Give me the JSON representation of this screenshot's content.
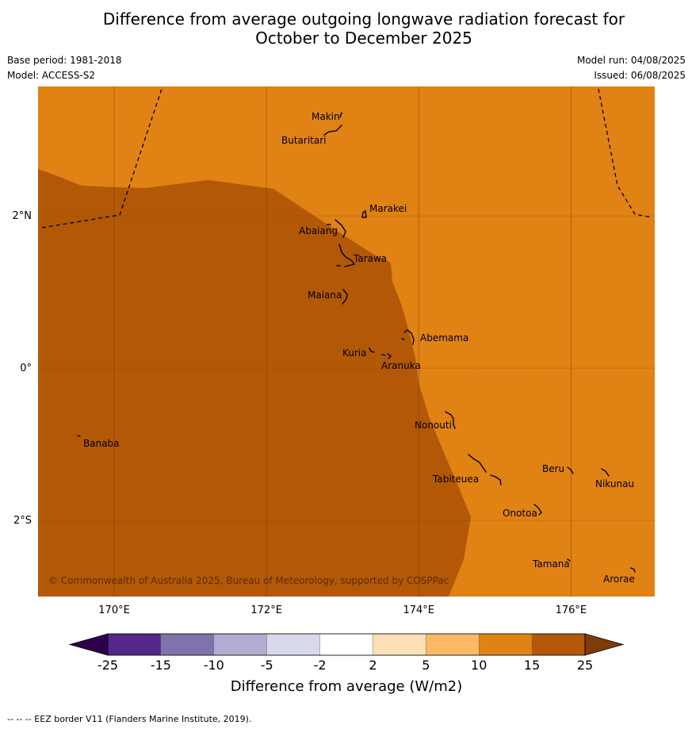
{
  "title_line1": "Difference from average outgoing longwave radiation forecast for",
  "title_line2": "October to December 2025",
  "base_period": "Base period: 1981-2018",
  "model": "Model: ACCESS-S2",
  "model_run": "Model run: 04/08/2025",
  "issued": "Issued: 06/08/2025",
  "copyright": "© Commonwealth of Australia 2025, Bureau of Meteorology, supported by COSPPac",
  "footer": "--  --  -- EEZ border V11 (Flanders Marine Institute, 2019).",
  "map": {
    "lon_range": [
      169,
      177.1
    ],
    "lat_range": [
      -3.0,
      3.7
    ],
    "lon_ticks": [
      {
        "value": 170,
        "label": "170°E"
      },
      {
        "value": 172,
        "label": "172°E"
      },
      {
        "value": 174,
        "label": "174°E"
      },
      {
        "value": 176,
        "label": "176°E"
      }
    ],
    "lat_ticks": [
      {
        "value": 2,
        "label": "2°N"
      },
      {
        "value": 0,
        "label": "0°"
      },
      {
        "value": -2,
        "label": "2°S"
      }
    ],
    "zones": [
      {
        "category": "10 to 15",
        "color": "#e08214"
      },
      {
        "category": "15 to 25",
        "color": "#b35806"
      }
    ],
    "islands": [
      {
        "name": "Makin",
        "lon": 172.95,
        "lat": 3.35
      },
      {
        "name": "Butaritari",
        "lon": 172.85,
        "lat": 3.1
      },
      {
        "name": "Marakei",
        "lon": 173.3,
        "lat": 2.0
      },
      {
        "name": "Abaiang",
        "lon": 173.0,
        "lat": 1.85
      },
      {
        "name": "Tarawa",
        "lon": 173.0,
        "lat": 1.45
      },
      {
        "name": "Maiana",
        "lon": 173.0,
        "lat": 0.95
      },
      {
        "name": "Abemama",
        "lon": 173.9,
        "lat": 0.4
      },
      {
        "name": "Kuria",
        "lon": 173.4,
        "lat": 0.22
      },
      {
        "name": "Aranuka",
        "lon": 173.6,
        "lat": 0.17
      },
      {
        "name": "Nonouti",
        "lon": 174.4,
        "lat": -0.65
      },
      {
        "name": "Banaba",
        "lon": 169.55,
        "lat": -0.87
      },
      {
        "name": "Tabiteuea",
        "lon": 174.85,
        "lat": -1.3
      },
      {
        "name": "Beru",
        "lon": 176.0,
        "lat": -1.3
      },
      {
        "name": "Nikunau",
        "lon": 176.45,
        "lat": -1.35
      },
      {
        "name": "Onotoa",
        "lon": 175.55,
        "lat": -1.85
      },
      {
        "name": "Tamana",
        "lon": 175.98,
        "lat": -2.5
      },
      {
        "name": "Arorae",
        "lon": 176.8,
        "lat": -2.65
      }
    ]
  },
  "legend": {
    "title": "Difference from average (W/m2)",
    "tick_labels": [
      "-25",
      "-15",
      "-10",
      "-5",
      "-2",
      "2",
      "5",
      "10",
      "15",
      "25"
    ],
    "colors": [
      "#2d004b",
      "#542788",
      "#8073ac",
      "#b2abd2",
      "#d8daeb",
      "#ffffff",
      "#fee0b6",
      "#fdb863",
      "#e08214",
      "#b35806",
      "#7f3b08"
    ]
  },
  "chart_data": {
    "type": "heatmap",
    "title": "Difference from average outgoing longwave radiation forecast for October to December 2025",
    "xlabel": "",
    "ylabel": "",
    "xlim": [
      169,
      177.1
    ],
    "ylim": [
      -3.0,
      3.7
    ],
    "colorbar_label": "Difference from average (W/m2)",
    "colorbar_ticks": [
      -25,
      -15,
      -10,
      -5,
      -2,
      2,
      5,
      10,
      15,
      25
    ],
    "regions": [
      {
        "category": "15 to 25",
        "area": "west and south-west of the map"
      },
      {
        "category": "10 to 15",
        "area": "north and east of the map"
      }
    ]
  }
}
